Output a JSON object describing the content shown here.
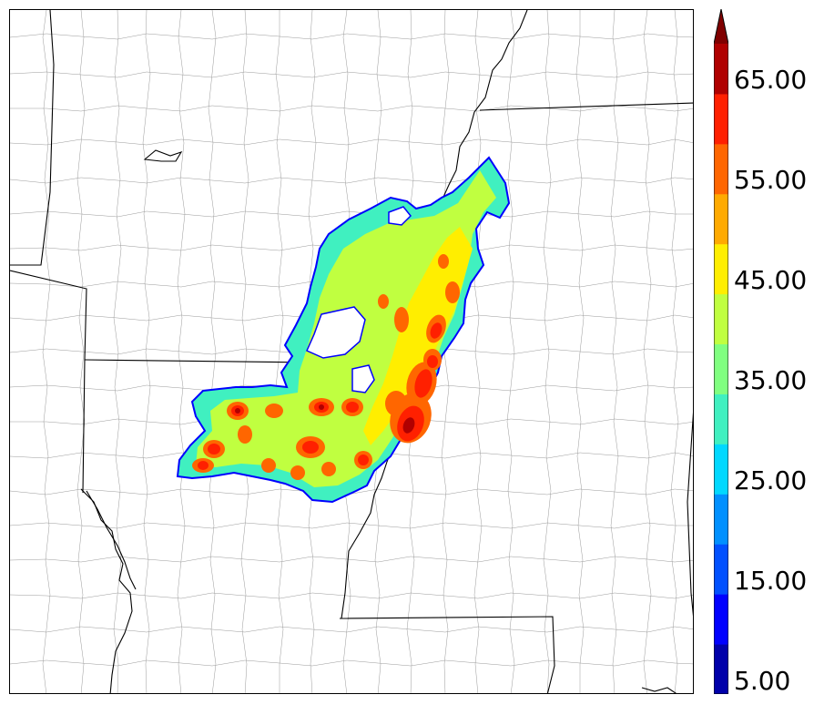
{
  "colorbar": {
    "labels": [
      "5.00",
      "15.00",
      "25.00",
      "35.00",
      "45.00",
      "55.00",
      "65.00"
    ],
    "levels": [
      5,
      10,
      15,
      20,
      25,
      30,
      35,
      40,
      45,
      50,
      55,
      60,
      65,
      70
    ],
    "colors": [
      "#0000aa",
      "#0000ff",
      "#0050ff",
      "#0090ff",
      "#00d8ff",
      "#40f0c0",
      "#80ff80",
      "#c0ff40",
      "#ffee00",
      "#ffaa00",
      "#ff6600",
      "#ff2000",
      "#b00000"
    ],
    "extend_color": "#800000"
  },
  "map": {
    "field_colors": {
      "edge": "#0000ff",
      "low": "#40f0c0",
      "mid": "#c0ff40",
      "high": "#ffee00",
      "strong": "#ff6600",
      "core": "#ff2000",
      "peak": "#b00000"
    },
    "boundary_color": "#000000",
    "county_color": "#9a9a9a"
  }
}
